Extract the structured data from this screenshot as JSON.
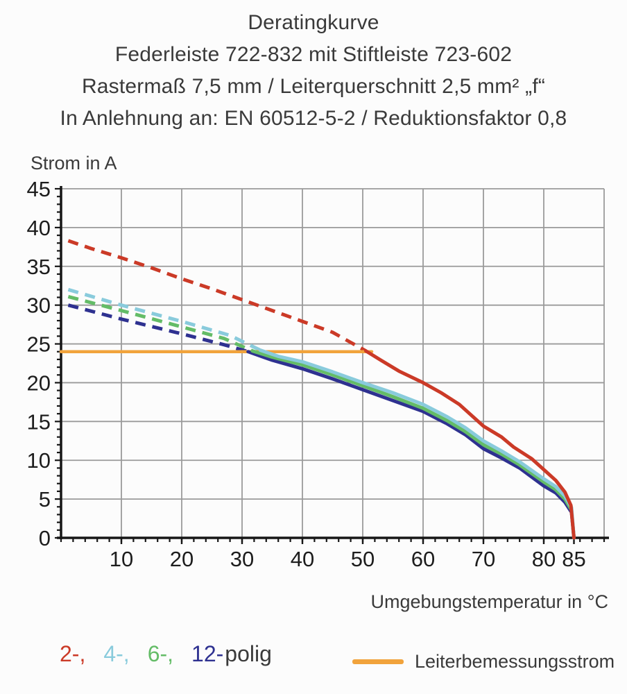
{
  "title": {
    "lines": [
      "Deratingkurve",
      "Federleiste 722-832 mit Stiftleiste 723-602",
      "Rastermaß 7,5 mm / Leiterquerschnitt 2,5 mm² „f“",
      "In Anlehnung an: EN 60512-5-2 / Reduktionsfaktor 0,8"
    ]
  },
  "colors": {
    "background": "#fcfcfc",
    "text": "#3a3a3a",
    "tick_text": "#1d1d1d",
    "axis": "#161616",
    "grid": "#9a9a9a",
    "red": "#cb3a27",
    "cyan": "#89cbdc",
    "green": "#64bc67",
    "blue": "#2e3190",
    "orange": "#f1a33c"
  },
  "chart_data": {
    "type": "line",
    "title": "Deratingkurve",
    "xlabel": "Umgebungstemperatur in °C",
    "ylabel": "Strom in A",
    "xlim": [
      0,
      90
    ],
    "ylim": [
      0,
      45
    ],
    "grid": {
      "x_lines": [
        10,
        20,
        30,
        40,
        50,
        60,
        70,
        80,
        90
      ],
      "y_lines": [
        5,
        10,
        15,
        20,
        25,
        30,
        35,
        40,
        45
      ],
      "on": true
    },
    "x_major_ticks": [
      10,
      20,
      30,
      40,
      50,
      60,
      70,
      80,
      85
    ],
    "x_minor_step": 2,
    "y_major_ticks": [
      0,
      5,
      10,
      15,
      20,
      25,
      30,
      35,
      40,
      45
    ],
    "y_minor_step": 1,
    "legend_position": "bottom",
    "series": [
      {
        "name": "2-polig",
        "color": "#cb3a27",
        "dashed_points": [
          [
            1.2,
            38.3
          ],
          [
            5,
            37.3
          ],
          [
            10,
            36.1
          ],
          [
            15,
            34.8
          ],
          [
            20,
            33.4
          ],
          [
            25,
            32.1
          ],
          [
            30,
            30.7
          ],
          [
            35,
            29.3
          ],
          [
            40,
            27.9
          ],
          [
            45,
            26.5
          ],
          [
            50.5,
            24.1
          ]
        ],
        "solid_points": [
          [
            50.5,
            24.1
          ],
          [
            53,
            22.9
          ],
          [
            56,
            21.5
          ],
          [
            60,
            20.0
          ],
          [
            63,
            18.7
          ],
          [
            66,
            17.2
          ],
          [
            70,
            14.4
          ],
          [
            73,
            13.0
          ],
          [
            75,
            11.7
          ],
          [
            78,
            10.2
          ],
          [
            80,
            8.8
          ],
          [
            82,
            7.4
          ],
          [
            83.5,
            5.9
          ],
          [
            84.5,
            4.2
          ],
          [
            85,
            0
          ]
        ]
      },
      {
        "name": "4-polig",
        "color": "#89cbdc",
        "dashed_points": [
          [
            1.2,
            32.0
          ],
          [
            10,
            30.0
          ],
          [
            20,
            27.9
          ],
          [
            28,
            26.1
          ],
          [
            33,
            24.2
          ]
        ],
        "solid_points": [
          [
            33,
            24.2
          ],
          [
            36,
            23.4
          ],
          [
            40,
            22.7
          ],
          [
            45,
            21.4
          ],
          [
            50,
            20.0
          ],
          [
            55,
            18.7
          ],
          [
            60,
            17.2
          ],
          [
            64,
            15.6
          ],
          [
            67,
            14.2
          ],
          [
            70,
            12.5
          ],
          [
            73,
            11.2
          ],
          [
            76,
            9.8
          ],
          [
            80,
            7.6
          ],
          [
            82,
            6.6
          ],
          [
            83.5,
            5.4
          ],
          [
            84.6,
            3.9
          ],
          [
            85,
            0
          ]
        ]
      },
      {
        "name": "6-polig",
        "color": "#64bc67",
        "dashed_points": [
          [
            1.2,
            31.1
          ],
          [
            10,
            29.3
          ],
          [
            20,
            27.2
          ],
          [
            27,
            25.7
          ],
          [
            31.7,
            24.1
          ]
        ],
        "solid_points": [
          [
            31.7,
            24.1
          ],
          [
            35,
            23.3
          ],
          [
            40,
            22.3
          ],
          [
            45,
            21.0
          ],
          [
            50,
            19.6
          ],
          [
            55,
            18.2
          ],
          [
            60,
            16.7
          ],
          [
            64,
            15.1
          ],
          [
            67,
            13.7
          ],
          [
            70,
            12.0
          ],
          [
            73,
            10.8
          ],
          [
            76,
            9.4
          ],
          [
            80,
            7.2
          ],
          [
            82,
            6.2
          ],
          [
            83.5,
            5.0
          ],
          [
            84.6,
            3.6
          ],
          [
            85,
            0
          ]
        ]
      },
      {
        "name": "12-polig",
        "color": "#2e3190",
        "dashed_points": [
          [
            1.2,
            30.0
          ],
          [
            10,
            28.2
          ],
          [
            20,
            26.3
          ],
          [
            27,
            24.9
          ],
          [
            31,
            24.0
          ]
        ],
        "solid_points": [
          [
            31,
            24.0
          ],
          [
            35,
            22.9
          ],
          [
            40,
            21.8
          ],
          [
            45,
            20.5
          ],
          [
            50,
            19.1
          ],
          [
            55,
            17.7
          ],
          [
            60,
            16.3
          ],
          [
            64,
            14.7
          ],
          [
            67,
            13.3
          ],
          [
            70,
            11.5
          ],
          [
            73,
            10.3
          ],
          [
            76,
            9.0
          ],
          [
            80,
            6.7
          ],
          [
            82,
            5.8
          ],
          [
            83.5,
            4.6
          ],
          [
            84.6,
            3.3
          ],
          [
            85,
            0
          ]
        ]
      },
      {
        "name": "Leiterbemessungsstrom",
        "color": "#f1a33c",
        "width": 4.5,
        "solid_points": [
          [
            0,
            24
          ],
          [
            51.5,
            24
          ]
        ]
      }
    ]
  },
  "axis_titles": {
    "y": "Strom in A",
    "x": "Umgebungstemperatur in °C"
  },
  "legend": {
    "items": [
      {
        "name": "2-polig",
        "label": "2-,",
        "color": "#cb3a27"
      },
      {
        "name": "4-polig",
        "label": "4-,",
        "color": "#89cbdc"
      },
      {
        "name": "6-polig",
        "label": "6-,",
        "color": "#64bc67"
      },
      {
        "name": "12-polig",
        "label": "12-",
        "color": "#2e3190"
      }
    ],
    "suffix": "polig",
    "rating_label": "Leiterbemessungsstrom",
    "rating_color": "#f1a33c"
  }
}
